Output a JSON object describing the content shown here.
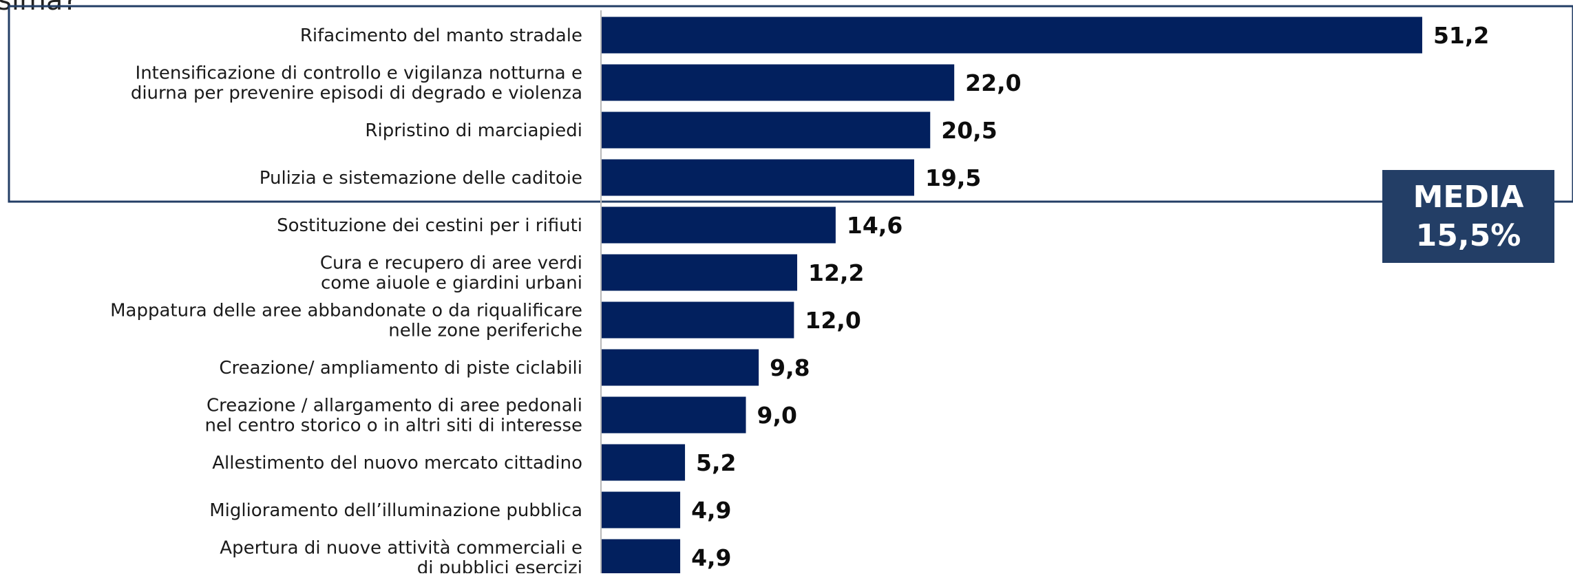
{
  "header": {
    "title_fragment": "sima?"
  },
  "average_box": {
    "label": "MEDIA",
    "value": "15,5%"
  },
  "colors": {
    "bar": "#02205e",
    "highlight_frame": "#233e66",
    "axis": "#b8b8b8",
    "average_box": "#233e66"
  },
  "chart_data": {
    "type": "bar",
    "orientation": "horizontal",
    "title": "",
    "xlabel": "",
    "ylabel": "",
    "xlim": [
      0,
      57
    ],
    "grid": false,
    "highlight_top_n": 4,
    "categories": [
      [
        "Rifacimento del manto stradale"
      ],
      [
        "Intensificazione di controllo e vigilanza notturna e",
        "diurna per prevenire episodi di degrado e violenza"
      ],
      [
        "Ripristino di marciapiedi"
      ],
      [
        "Pulizia e sistemazione delle caditoie"
      ],
      [
        "Sostituzione dei cestini per i rifiuti"
      ],
      [
        "Cura e recupero di aree verdi",
        "come aiuole e giardini urbani"
      ],
      [
        "Mappatura delle aree abbandonate o da riqualificare",
        "nelle zone periferiche"
      ],
      [
        "Creazione/ ampliamento di piste ciclabili"
      ],
      [
        "Creazione / allargamento di aree pedonali",
        "nel centro storico o in altri siti di interesse"
      ],
      [
        "Allestimento del nuovo mercato cittadino"
      ],
      [
        "Miglioramento dell’illuminazione pubblica"
      ],
      [
        "Apertura di nuove attività commerciali e",
        "di pubblici esercizi"
      ]
    ],
    "values": [
      51.2,
      22.0,
      20.5,
      19.5,
      14.6,
      12.2,
      12.0,
      9.8,
      9.0,
      5.2,
      4.9,
      4.9
    ],
    "value_labels": [
      "51,2",
      "22,0",
      "20,5",
      "19,5",
      "14,6",
      "12,2",
      "12,0",
      "9,8",
      "9,0",
      "5,2",
      "4,9",
      "4,9"
    ]
  }
}
